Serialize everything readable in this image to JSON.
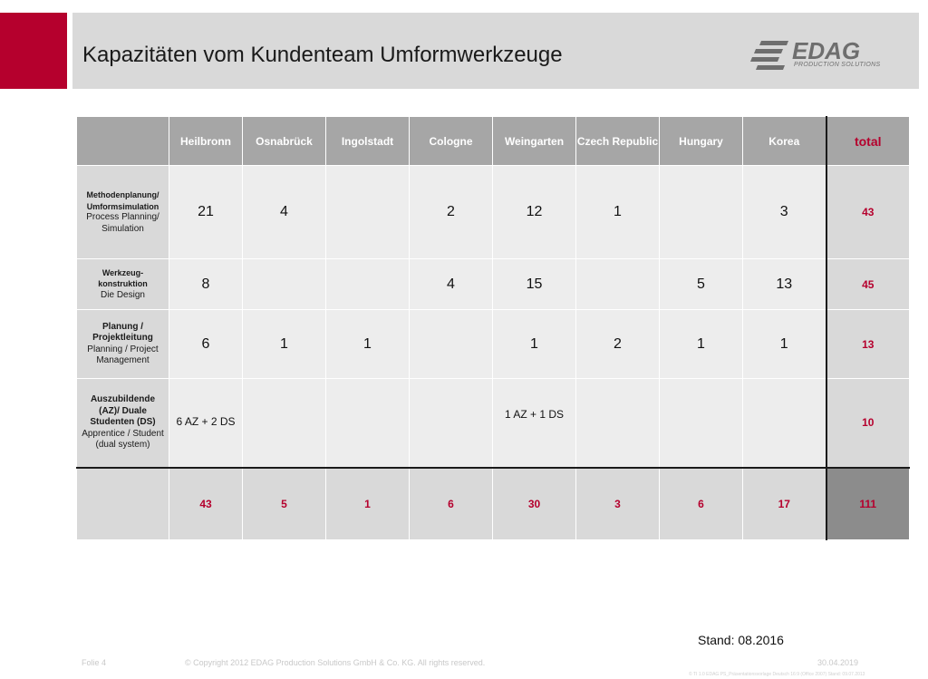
{
  "header": {
    "title": "Kapazitäten vom Kundenteam Umformwerkzeuge",
    "accent_color": "#b5002d",
    "band_color": "#d9d9d9"
  },
  "logo": {
    "word": "EDAG",
    "subtitle": "PRODUCTION SOLUTIONS",
    "icon": "edag-stripes-logo"
  },
  "table": {
    "columns": [
      "Heilbronn",
      "Osnabrück",
      "Ingolstadt",
      "Cologne",
      "Weingarten",
      "Czech Republic",
      "Hungary",
      "Korea"
    ],
    "total_label": "total",
    "rows": [
      {
        "label_de": "Methodenplanung/ Umformsimulation",
        "label_en": "Process Planning/ Simulation",
        "cells": [
          "21",
          "4",
          "",
          "2",
          "12",
          "1",
          "",
          "3"
        ],
        "total": "43"
      },
      {
        "label_de": "Werkzeug-konstruktion",
        "label_en": "Die Design",
        "cells": [
          "8",
          "",
          "",
          "4",
          "15",
          "",
          "5",
          "13"
        ],
        "total": "45"
      },
      {
        "label_de": "Planung / Projektleitung",
        "label_en": "Planning / Project Management",
        "cells": [
          "6",
          "1",
          "1",
          "",
          "1",
          "2",
          "1",
          "1"
        ],
        "total": "13"
      },
      {
        "label_de": "Auszubildende (AZ)/ Duale Studenten (DS)",
        "label_en": "Apprentice / Student (dual system)",
        "cells": [
          "6 AZ + 2 DS",
          "",
          "",
          "",
          "1 AZ + 1 DS",
          "",
          "",
          ""
        ],
        "total": "10"
      }
    ],
    "sums": [
      "43",
      "5",
      "1",
      "6",
      "30",
      "3",
      "6",
      "17"
    ],
    "grand_total": "111"
  },
  "stand": "Stand: 08.2016",
  "footer": {
    "slide": "Folie 4",
    "copyright": "© Copyright 2012 EDAG Production Solutions GmbH & Co. KG. All rights reserved.",
    "date": "30.04.2019",
    "tiny": "© TI 1.0 EDAG PS_Präsentationsvorlage Deutsch 16:9 (Office 2007) Stand: 09.07.2013"
  }
}
